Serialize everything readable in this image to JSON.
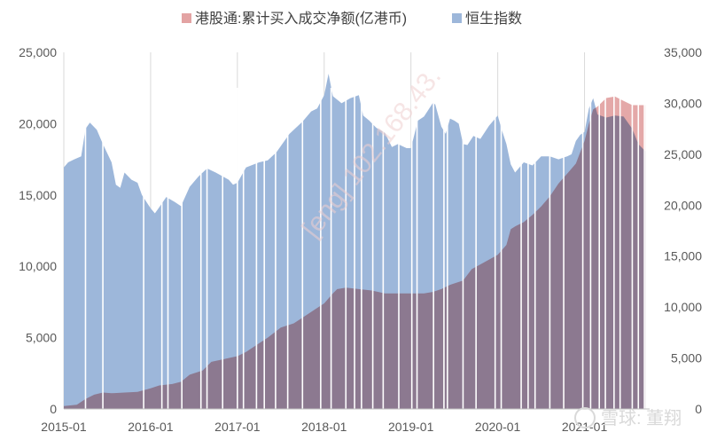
{
  "chart_data": {
    "type": "area",
    "title": "",
    "xlabel": "",
    "ylabel_left": "",
    "ylabel_right": "",
    "x_ticks": [
      "2015-01",
      "2016-01",
      "2017-01",
      "2018-01",
      "2019-01",
      "2020-01",
      "2021-01"
    ],
    "x_range": [
      2015.0,
      2021.75
    ],
    "y_left": {
      "min": 0,
      "max": 25000,
      "ticks": [
        "0",
        "5,000",
        "10,000",
        "15,000",
        "20,000",
        "25,000"
      ]
    },
    "y_right": {
      "min": 0,
      "max": 35000,
      "ticks": [
        "0",
        "5,000",
        "10,000",
        "15,000",
        "20,000",
        "25,000",
        "30,000",
        "35,000"
      ]
    },
    "grid": "vertical-at-year-ticks",
    "legend_position": "top",
    "series": [
      {
        "name": "港股通:累计买入成交净额(亿港币)",
        "axis": "left",
        "color": "#e3a3a3",
        "points": [
          [
            2015.0,
            200
          ],
          [
            2015.15,
            300
          ],
          [
            2015.25,
            700
          ],
          [
            2015.35,
            1000
          ],
          [
            2015.45,
            1150
          ],
          [
            2015.55,
            1100
          ],
          [
            2015.7,
            1150
          ],
          [
            2015.85,
            1200
          ],
          [
            2016.0,
            1450
          ],
          [
            2016.1,
            1650
          ],
          [
            2016.25,
            1750
          ],
          [
            2016.35,
            1900
          ],
          [
            2016.45,
            2400
          ],
          [
            2016.6,
            2700
          ],
          [
            2016.7,
            3300
          ],
          [
            2016.85,
            3500
          ],
          [
            2017.0,
            3700
          ],
          [
            2017.1,
            4000
          ],
          [
            2017.25,
            4600
          ],
          [
            2017.35,
            5000
          ],
          [
            2017.5,
            5700
          ],
          [
            2017.65,
            6000
          ],
          [
            2017.8,
            6600
          ],
          [
            2017.9,
            7000
          ],
          [
            2018.0,
            7400
          ],
          [
            2018.1,
            8100
          ],
          [
            2018.15,
            8400
          ],
          [
            2018.25,
            8500
          ],
          [
            2018.4,
            8400
          ],
          [
            2018.55,
            8300
          ],
          [
            2018.7,
            8100
          ],
          [
            2018.85,
            8100
          ],
          [
            2019.0,
            8100
          ],
          [
            2019.15,
            8100
          ],
          [
            2019.25,
            8200
          ],
          [
            2019.35,
            8400
          ],
          [
            2019.45,
            8700
          ],
          [
            2019.6,
            9000
          ],
          [
            2019.7,
            9800
          ],
          [
            2019.85,
            10300
          ],
          [
            2020.0,
            10800
          ],
          [
            2020.1,
            11500
          ],
          [
            2020.15,
            12600
          ],
          [
            2020.2,
            12800
          ],
          [
            2020.3,
            13100
          ],
          [
            2020.4,
            13600
          ],
          [
            2020.5,
            14200
          ],
          [
            2020.6,
            14900
          ],
          [
            2020.7,
            15800
          ],
          [
            2020.8,
            16500
          ],
          [
            2020.9,
            17200
          ],
          [
            2021.0,
            18800
          ],
          [
            2021.05,
            20000
          ],
          [
            2021.1,
            21000
          ],
          [
            2021.15,
            21200
          ],
          [
            2021.25,
            21800
          ],
          [
            2021.35,
            21900
          ],
          [
            2021.45,
            21600
          ],
          [
            2021.55,
            21300
          ],
          [
            2021.65,
            21300
          ],
          [
            2021.7,
            21300
          ]
        ]
      },
      {
        "name": "恒生指数",
        "axis": "right",
        "color": "#9db7da",
        "points": [
          [
            2015.0,
            23700
          ],
          [
            2015.05,
            24200
          ],
          [
            2015.12,
            24500
          ],
          [
            2015.2,
            24800
          ],
          [
            2015.25,
            27500
          ],
          [
            2015.3,
            28100
          ],
          [
            2015.38,
            27400
          ],
          [
            2015.45,
            26000
          ],
          [
            2015.55,
            24200
          ],
          [
            2015.6,
            22000
          ],
          [
            2015.65,
            21700
          ],
          [
            2015.7,
            23200
          ],
          [
            2015.78,
            22500
          ],
          [
            2015.85,
            22200
          ],
          [
            2015.9,
            21000
          ],
          [
            2016.0,
            19700
          ],
          [
            2016.05,
            19200
          ],
          [
            2016.1,
            19800
          ],
          [
            2016.18,
            20800
          ],
          [
            2016.28,
            20300
          ],
          [
            2016.35,
            19900
          ],
          [
            2016.45,
            21800
          ],
          [
            2016.55,
            22800
          ],
          [
            2016.65,
            23600
          ],
          [
            2016.75,
            23200
          ],
          [
            2016.9,
            22500
          ],
          [
            2016.95,
            22000
          ],
          [
            2017.0,
            22200
          ],
          [
            2017.1,
            23700
          ],
          [
            2017.25,
            24200
          ],
          [
            2017.35,
            24400
          ],
          [
            2017.45,
            25200
          ],
          [
            2017.6,
            27000
          ],
          [
            2017.75,
            28200
          ],
          [
            2017.85,
            29200
          ],
          [
            2017.92,
            29500
          ],
          [
            2018.0,
            30800
          ],
          [
            2018.05,
            32900
          ],
          [
            2018.1,
            30700
          ],
          [
            2018.2,
            30000
          ],
          [
            2018.3,
            30500
          ],
          [
            2018.4,
            30800
          ],
          [
            2018.45,
            28800
          ],
          [
            2018.52,
            28300
          ],
          [
            2018.6,
            27600
          ],
          [
            2018.7,
            27100
          ],
          [
            2018.78,
            25700
          ],
          [
            2018.85,
            26000
          ],
          [
            2018.9,
            25800
          ],
          [
            2018.95,
            25600
          ],
          [
            2019.0,
            25600
          ],
          [
            2019.08,
            28300
          ],
          [
            2019.15,
            28700
          ],
          [
            2019.25,
            30000
          ],
          [
            2019.28,
            29900
          ],
          [
            2019.35,
            27700
          ],
          [
            2019.4,
            27000
          ],
          [
            2019.45,
            28500
          ],
          [
            2019.5,
            28300
          ],
          [
            2019.55,
            28000
          ],
          [
            2019.6,
            26000
          ],
          [
            2019.65,
            25900
          ],
          [
            2019.72,
            26800
          ],
          [
            2019.8,
            26500
          ],
          [
            2019.9,
            27800
          ],
          [
            2020.0,
            28800
          ],
          [
            2020.05,
            27300
          ],
          [
            2020.1,
            26000
          ],
          [
            2020.15,
            24000
          ],
          [
            2020.2,
            23200
          ],
          [
            2020.3,
            24200
          ],
          [
            2020.4,
            23900
          ],
          [
            2020.5,
            24800
          ],
          [
            2020.6,
            24800
          ],
          [
            2020.7,
            24500
          ],
          [
            2020.8,
            24800
          ],
          [
            2020.85,
            25000
          ],
          [
            2020.9,
            26300
          ],
          [
            2020.95,
            26900
          ],
          [
            2021.0,
            27200
          ],
          [
            2021.05,
            29500
          ],
          [
            2021.1,
            30500
          ],
          [
            2021.15,
            28900
          ],
          [
            2021.25,
            28600
          ],
          [
            2021.35,
            28800
          ],
          [
            2021.45,
            28700
          ],
          [
            2021.55,
            27500
          ],
          [
            2021.62,
            26000
          ],
          [
            2021.7,
            25300
          ]
        ]
      }
    ],
    "gaps": [
      2015.25,
      2015.45,
      2015.92,
      2016.13,
      2016.2,
      2016.36,
      2016.58,
      2016.65,
      2016.83,
      2017.0,
      2017.07,
      2017.22,
      2017.31,
      2017.44,
      2017.58,
      2017.75,
      2017.96,
      2018.08,
      2018.25,
      2018.35,
      2018.43,
      2018.56,
      2018.68,
      2018.86,
      2019.01,
      2019.07,
      2019.26,
      2019.38,
      2019.42,
      2019.6,
      2019.75,
      2019.97,
      2020.04,
      2020.27,
      2020.35,
      2020.43,
      2020.6,
      2020.76,
      2020.98,
      2021.07,
      2021.17,
      2021.24,
      2021.34,
      2021.41,
      2021.55,
      2021.62,
      2021.69
    ]
  },
  "watermark": {
    "mid": "[eng] 102.168.43.",
    "brand": "雪球: 董翔"
  }
}
